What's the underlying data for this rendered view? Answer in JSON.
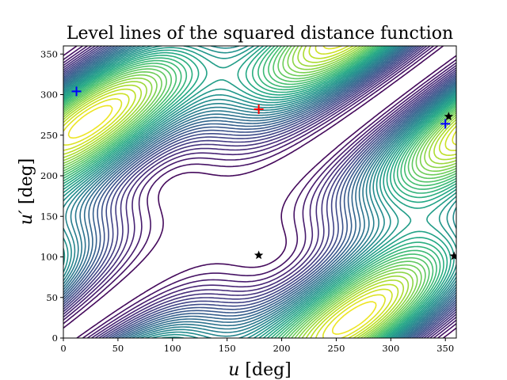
{
  "chart_data": {
    "type": "contour",
    "title": "Level lines of the squared distance function",
    "xlabel": {
      "symbol": "u",
      "unit": " [deg]"
    },
    "ylabel": {
      "symbol": "u′",
      "unit": " [deg]"
    },
    "xlim": [
      0,
      360
    ],
    "ylim": [
      0,
      360
    ],
    "xticks": [
      0,
      50,
      100,
      150,
      200,
      250,
      300,
      350
    ],
    "yticks": [
      0,
      50,
      100,
      150,
      200,
      250,
      300,
      350
    ],
    "grid": false,
    "colormap": "viridis",
    "colormap_stops": [
      "#440154",
      "#482475",
      "#414487",
      "#355f8d",
      "#2a788e",
      "#21918c",
      "#22a884",
      "#44bf70",
      "#7ad151",
      "#bddf26",
      "#fde725"
    ],
    "markers": [
      {
        "kind": "plus",
        "color": "#ff0000",
        "x": 179,
        "y": 282
      },
      {
        "kind": "plus",
        "color": "#0000ff",
        "x": 12,
        "y": 304
      },
      {
        "kind": "plus",
        "color": "#0000ff",
        "x": 350,
        "y": 264
      },
      {
        "kind": "star",
        "color": "#000000",
        "x": 179,
        "y": 102
      },
      {
        "kind": "star",
        "color": "#000000",
        "x": 353,
        "y": 273
      },
      {
        "kind": "star",
        "color": "#000000",
        "x": 358,
        "y": 101
      }
    ]
  }
}
